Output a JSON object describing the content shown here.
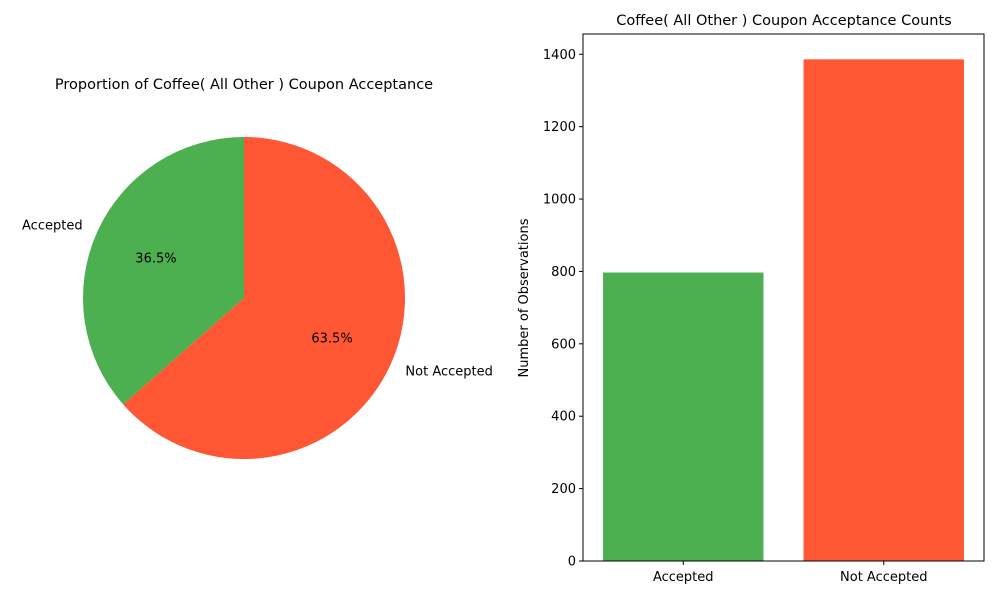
{
  "chart_data": [
    {
      "type": "pie",
      "title": "Proportion of Coffee( All Other ) Coupon Acceptance",
      "labels": [
        "Accepted",
        "Not Accepted"
      ],
      "values": [
        36.5,
        63.5
      ],
      "value_labels": [
        "36.5%",
        "63.5%"
      ],
      "colors": [
        "#4caf50",
        "#ff5733"
      ],
      "start_angle_deg": 90,
      "direction": "counter-clockwise"
    },
    {
      "type": "bar",
      "title": "Coffee( All Other ) Coupon Acceptance Counts",
      "categories": [
        "Accepted",
        "Not Accepted"
      ],
      "values": [
        797,
        1386
      ],
      "colors": [
        "#4caf50",
        "#ff5733"
      ],
      "xlabel": "",
      "ylabel": "Number of Observations",
      "ylim": [
        0,
        1456
      ],
      "yticks": [
        0,
        200,
        400,
        600,
        800,
        1000,
        1200,
        1400
      ],
      "ytick_labels": [
        "0",
        "200",
        "400",
        "600",
        "800",
        "1000",
        "1200",
        "1400"
      ],
      "grid": false
    }
  ]
}
